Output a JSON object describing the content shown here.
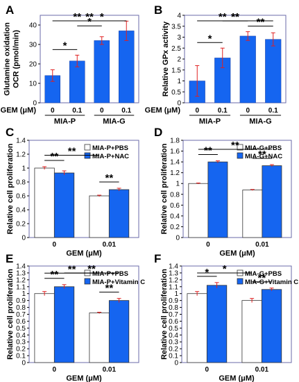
{
  "colors": {
    "blue": "#1565F0",
    "white": "#ffffff",
    "frame": "#6a6aa8",
    "error": "#e02020"
  },
  "chart_data": [
    {
      "type": "bar",
      "panel": "A",
      "ylabel_lines": [
        "Glutamine oxidation",
        "OCR (pmol/min)"
      ],
      "ylim": [
        0,
        45
      ],
      "yticks": [
        0,
        10,
        20,
        30,
        40
      ],
      "xlabel_prefix": "GEM (μM)",
      "categories": [
        "0",
        "0.1",
        "0",
        "0.1"
      ],
      "groups": [
        "MIA-P",
        "MIA-G"
      ],
      "values": [
        14,
        21.5,
        32,
        37
      ],
      "errors": [
        3,
        3,
        2,
        5
      ],
      "significance": [
        {
          "from": 0,
          "to": 1,
          "label": "*"
        },
        {
          "from": 0,
          "to": 2,
          "label": "**"
        },
        {
          "from": 0,
          "to": 3,
          "label": "**"
        },
        {
          "from": 1,
          "to": 2,
          "label": "*"
        },
        {
          "from": 1,
          "to": 3,
          "label": "*"
        }
      ]
    },
    {
      "type": "bar",
      "panel": "B",
      "ylabel_lines": [
        "Relative GPx activity"
      ],
      "ylim": [
        0,
        4
      ],
      "yticks": [
        0,
        0.5,
        1,
        1.5,
        2,
        2.5,
        3,
        3.5,
        4
      ],
      "xlabel_prefix": "GEM (μM)",
      "categories": [
        "0",
        "0.1",
        "0",
        "0.1"
      ],
      "groups": [
        "MIA-P",
        "MIA-G"
      ],
      "values": [
        1,
        2.05,
        3.05,
        2.9
      ],
      "errors": [
        0.7,
        0.45,
        0.2,
        0.3
      ],
      "significance": [
        {
          "from": 0,
          "to": 1,
          "label": "*"
        },
        {
          "from": 0,
          "to": 2,
          "label": "**"
        },
        {
          "from": 0,
          "to": 3,
          "label": "**"
        },
        {
          "from": 1,
          "to": 2,
          "label": "**"
        },
        {
          "from": 2,
          "to": 3,
          "label": "**"
        }
      ]
    },
    {
      "type": "bar",
      "panel": "C",
      "ylabel_lines": [
        "Relative cell proliferation"
      ],
      "ylim": [
        0,
        1.4
      ],
      "yticks": [
        0,
        0.2,
        0.4,
        0.6,
        0.8,
        1,
        1.2,
        1.4
      ],
      "xlabel": "GEM (μM)",
      "categories": [
        "0",
        "0.01"
      ],
      "series": [
        {
          "name": "MIA-P+PBS",
          "values": [
            1.0,
            0.6
          ],
          "errors": [
            0.02,
            0.01
          ],
          "color": "#ffffff"
        },
        {
          "name": "MIA-P+NAC",
          "values": [
            0.93,
            0.69
          ],
          "errors": [
            0.03,
            0.02
          ],
          "color": "#1565F0"
        }
      ],
      "legend": "top-right",
      "significance": [
        {
          "from": [
            0,
            0
          ],
          "to": [
            1,
            0
          ],
          "label": "**"
        },
        {
          "from": [
            0,
            0
          ],
          "to": [
            0,
            1
          ],
          "label": "**"
        },
        {
          "from": [
            1,
            0
          ],
          "to": [
            1,
            1
          ],
          "label": "**"
        }
      ]
    },
    {
      "type": "bar",
      "panel": "D",
      "ylabel_lines": [
        "Relative cell proliferation"
      ],
      "ylim": [
        0,
        1.8
      ],
      "yticks": [
        0,
        0.2,
        0.4,
        0.6,
        0.8,
        1,
        1.2,
        1.4,
        1.6,
        1.8
      ],
      "xlabel": "GEM (μM)",
      "categories": [
        "0",
        "0.01"
      ],
      "series": [
        {
          "name": "MIA-G+PBS",
          "values": [
            1.0,
            0.88
          ],
          "errors": [
            0.01,
            0.01
          ],
          "color": "#ffffff"
        },
        {
          "name": "MIA-G+NAC",
          "values": [
            1.4,
            1.33
          ],
          "errors": [
            0.02,
            0.02
          ],
          "color": "#1565F0"
        }
      ],
      "legend": "top-right",
      "significance": [
        {
          "from": [
            0,
            0
          ],
          "to": [
            0,
            1
          ],
          "label": "**"
        },
        {
          "from": [
            0,
            0
          ],
          "to": [
            1,
            1
          ],
          "label": "**"
        },
        {
          "from": [
            1,
            0
          ],
          "to": [
            1,
            1
          ],
          "label": "**"
        }
      ]
    },
    {
      "type": "bar",
      "panel": "E",
      "ylabel_lines": [
        "Relative cell proliferation"
      ],
      "ylim": [
        0,
        1.4
      ],
      "yticks": [
        0,
        0.1,
        0.2,
        0.3,
        0.4,
        0.5,
        0.6,
        0.7,
        0.8,
        0.9,
        1,
        1.1,
        1.2,
        1.3,
        1.4
      ],
      "xlabel": "GEM (μM)",
      "categories": [
        "0",
        "0.01"
      ],
      "series": [
        {
          "name": "MIA-P+PBS",
          "values": [
            1.0,
            0.72
          ],
          "errors": [
            0.03,
            0.01
          ],
          "color": "#ffffff"
        },
        {
          "name": "MIA-P+Vitamin C",
          "values": [
            1.1,
            0.9
          ],
          "errors": [
            0.03,
            0.03
          ],
          "color": "#1565F0"
        }
      ],
      "legend": "top-right",
      "significance": [
        {
          "from": [
            0,
            0
          ],
          "to": [
            1,
            0
          ],
          "label": "**"
        },
        {
          "from": [
            0,
            0
          ],
          "to": [
            0,
            1
          ],
          "label": "**"
        },
        {
          "from": [
            0,
            1
          ],
          "to": [
            1,
            1
          ],
          "label": "**"
        },
        {
          "from": [
            1,
            0
          ],
          "to": [
            1,
            1
          ],
          "label": "**"
        }
      ]
    },
    {
      "type": "bar",
      "panel": "F",
      "ylabel_lines": [
        "Relative cell proliferation"
      ],
      "ylim": [
        0,
        1.4
      ],
      "yticks": [
        0,
        0.1,
        0.2,
        0.3,
        0.4,
        0.5,
        0.6,
        0.7,
        0.8,
        0.9,
        1,
        1.1,
        1.2,
        1.3,
        1.4
      ],
      "xlabel": "GEM (μM)",
      "categories": [
        "0",
        "0.01"
      ],
      "series": [
        {
          "name": "MIA-G+PBS",
          "values": [
            1.0,
            0.9
          ],
          "errors": [
            0.03,
            0.03
          ],
          "color": "#ffffff"
        },
        {
          "name": "MIA-G+Vitamin C",
          "values": [
            1.12,
            1.06
          ],
          "errors": [
            0.04,
            0.02
          ],
          "color": "#1565F0"
        }
      ],
      "legend": "top-right",
      "significance": [
        {
          "from": [
            0,
            0
          ],
          "to": [
            1,
            0
          ],
          "label": "*"
        },
        {
          "from": [
            0,
            0
          ],
          "to": [
            0,
            1
          ],
          "label": "*"
        },
        {
          "from": [
            1,
            0
          ],
          "to": [
            1,
            1
          ],
          "label": "**"
        }
      ]
    }
  ]
}
